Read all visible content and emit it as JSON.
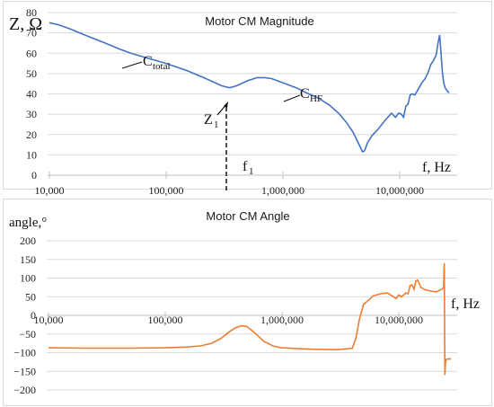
{
  "chart_data": [
    {
      "type": "line",
      "title": "Motor CM Magnitude",
      "ylabel": "Z, Ω",
      "xlabel": "f, Hz",
      "xscale": "log",
      "xlim": [
        10000,
        30000000
      ],
      "ylim": [
        0,
        80
      ],
      "x_ticks": [
        "10,000",
        "100,000",
        "1,000,000",
        "10,000,000"
      ],
      "y_ticks": [
        "0",
        "10",
        "20",
        "30",
        "40",
        "50",
        "60",
        "70",
        "80"
      ],
      "grid": "horizontal",
      "color": "#4472C4",
      "series": [
        {
          "x": [
            10000,
            12000,
            15000,
            20000,
            30000,
            40000,
            50000,
            70000,
            100000,
            150000,
            200000,
            250000,
            300000,
            350000,
            400000,
            500000,
            600000,
            700000,
            800000,
            1000000,
            1300000,
            1600000,
            2000000,
            2500000,
            3000000,
            3500000,
            4000000,
            4500000,
            4800000,
            5000000,
            5300000,
            5800000,
            6500000,
            7500000,
            8500000,
            9200000,
            9800000,
            10300000,
            10800000,
            11300000,
            11800000,
            12300000,
            12800000,
            13500000,
            14500000,
            15500000,
            16500000,
            17500000,
            18500000,
            19500000,
            20500000,
            21300000,
            22000000,
            22600000,
            23200000,
            23800000,
            24500000,
            25500000,
            26500000
          ],
          "y": [
            75,
            74,
            72,
            69,
            65,
            62,
            60,
            57.5,
            55,
            51.5,
            48.5,
            46,
            44,
            43,
            44,
            46.5,
            48,
            48,
            47.5,
            45.5,
            43,
            40.5,
            38,
            34.5,
            30.5,
            26,
            21,
            15,
            11.5,
            12,
            16,
            19.5,
            22.5,
            27,
            30.5,
            28.5,
            30.5,
            30,
            28.5,
            34,
            35,
            39.5,
            40,
            39.5,
            42.5,
            45.5,
            47.5,
            50.5,
            54.5,
            56.5,
            59,
            65,
            69,
            60,
            51,
            45.5,
            43,
            41.5,
            40.5
          ]
        }
      ],
      "annotations": [
        {
          "text": "C",
          "sub": "total"
        },
        {
          "text": "C",
          "sub": "HF"
        },
        {
          "text": "Z",
          "sub": "1"
        },
        {
          "text": "f",
          "sub": "1"
        }
      ]
    },
    {
      "type": "line",
      "title": "Motor CM Angle",
      "ylabel": "angle,°",
      "xlabel": "f, Hz",
      "xscale": "log",
      "xlim": [
        10000,
        30000000
      ],
      "ylim": [
        -200,
        200
      ],
      "x_ticks": [
        "10,000",
        "100,000",
        "1,000,000",
        "10,000,000"
      ],
      "y_ticks": [
        "200",
        "150",
        "100",
        "50",
        "0",
        "−50",
        "−100",
        "−150",
        "−200"
      ],
      "grid": "horizontal",
      "color": "#ED7D31",
      "series": [
        {
          "x": [
            10000,
            20000,
            50000,
            100000,
            150000,
            200000,
            250000,
            300000,
            350000,
            400000,
            450000,
            500000,
            600000,
            700000,
            850000,
            1000000,
            1500000,
            2000000,
            3000000,
            4000000,
            4300000,
            4600000,
            5000000,
            5500000,
            6000000,
            7000000,
            8000000,
            9000000,
            9500000,
            10000000,
            10500000,
            11000000,
            11500000,
            12000000,
            12500000,
            13000000,
            13500000,
            14000000,
            14500000,
            15500000,
            17000000,
            19000000,
            21000000,
            22500000,
            23500000,
            24200000,
            24500000,
            24800000,
            25100000,
            25500000,
            26500000,
            28000000
          ],
          "y": [
            -87,
            -88,
            -88,
            -87,
            -85,
            -82,
            -75,
            -62,
            -45,
            -33,
            -28,
            -30,
            -50,
            -70,
            -83,
            -87,
            -90,
            -91,
            -92,
            -88,
            -60,
            -10,
            30,
            40,
            52,
            58,
            60,
            50,
            45,
            55,
            50,
            55,
            60,
            58,
            80,
            82,
            70,
            92,
            95,
            75,
            68,
            65,
            63,
            68,
            70,
            75,
            140,
            -160,
            -125,
            -118,
            -117,
            -117
          ]
        }
      ]
    }
  ]
}
